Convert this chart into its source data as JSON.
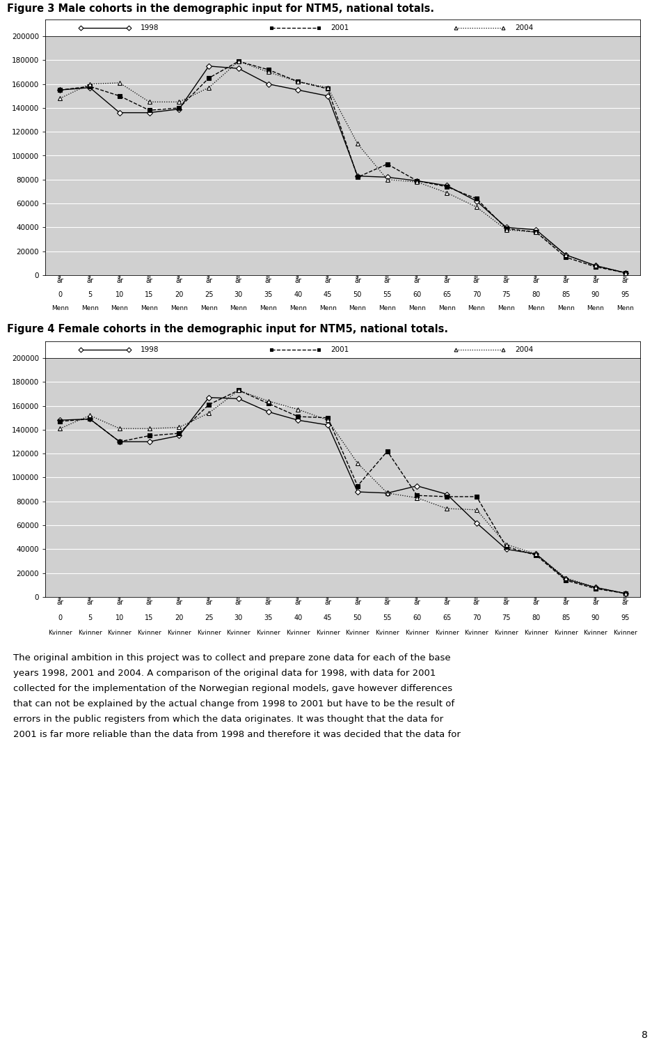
{
  "fig1_title": "Figure 3 Male cohorts in the demographic input for NTM5, national totals.",
  "fig2_title": "Figure 4 Female cohorts in the demographic input for NTM5, national totals.",
  "x_ages": [
    0,
    5,
    10,
    15,
    20,
    25,
    30,
    35,
    40,
    45,
    50,
    55,
    60,
    65,
    70,
    75,
    80,
    85,
    90,
    95
  ],
  "x_label_row3_men": [
    "Menn",
    "Menn",
    "Menn",
    "Menn",
    "Menn",
    "Menn",
    "Menn",
    "Menn",
    "Menn",
    "Menn",
    "Menn",
    "Menn",
    "Menn",
    "Menn",
    "Menn",
    "Menn",
    "Menn",
    "Menn",
    "Menn",
    "Menn"
  ],
  "x_label_row3_women": [
    "Kvinner",
    "Kvinner",
    "Kvinner",
    "Kvinner",
    "Kvinner",
    "Kvinner",
    "Kvinner",
    "Kvinner",
    "Kvinner",
    "Kvinner",
    "Kvinner",
    "Kvinner",
    "Kvinner",
    "Kvinner",
    "Kvinner",
    "Kvinner",
    "Kvinner",
    "Kvinner",
    "Kvinner",
    "Kvinner"
  ],
  "men_1998": [
    155000,
    157000,
    136000,
    136000,
    139000,
    175000,
    173000,
    160000,
    155000,
    150000,
    83000,
    82000,
    79000,
    75000,
    62000,
    40000,
    38000,
    17000,
    8000,
    2000
  ],
  "men_2001": [
    155000,
    158000,
    150000,
    138000,
    140000,
    165000,
    179000,
    172000,
    162000,
    156000,
    82000,
    93000,
    79000,
    74000,
    64000,
    39000,
    36000,
    15000,
    7000,
    2000
  ],
  "men_2004": [
    148000,
    160000,
    161000,
    145000,
    145000,
    157000,
    179000,
    170000,
    162000,
    157000,
    110000,
    80000,
    78000,
    69000,
    57000,
    38000,
    36000,
    17000,
    8000,
    2000
  ],
  "women_1998": [
    148000,
    149000,
    130000,
    130000,
    135000,
    167000,
    166000,
    155000,
    148000,
    144000,
    88000,
    87000,
    93000,
    86000,
    62000,
    40000,
    36000,
    15000,
    8000,
    3000
  ],
  "women_2001": [
    147000,
    149000,
    130000,
    135000,
    137000,
    161000,
    173000,
    162000,
    151000,
    150000,
    93000,
    122000,
    85000,
    84000,
    84000,
    42000,
    35000,
    14000,
    7000,
    3000
  ],
  "women_2004": [
    141000,
    152000,
    141000,
    141000,
    142000,
    154000,
    173000,
    164000,
    157000,
    148000,
    112000,
    87000,
    83000,
    74000,
    73000,
    44000,
    36000,
    16000,
    8000,
    3000
  ],
  "ylim": [
    0,
    200000
  ],
  "yticks": [
    0,
    20000,
    40000,
    60000,
    80000,
    100000,
    120000,
    140000,
    160000,
    180000,
    200000
  ],
  "legend_labels": [
    "1998",
    "2001",
    "2004"
  ],
  "bg_color": "#d0d0d0",
  "body_lines": [
    "The original ambition in this project was to collect and prepare zone data for each of the base",
    "years 1998, 2001 and 2004. A comparison of the original data for 1998, with data for 2001",
    "collected for the implementation of the Norwegian regional models, gave however differences",
    "that can not be explained by the actual change from 1998 to 2001 but have to be the result of",
    "errors in the public registers from which the data originates. It was thought that the data for",
    "2001 is far more reliable than the data from 1998 and therefore it was decided that the data for"
  ],
  "page_number": "8"
}
